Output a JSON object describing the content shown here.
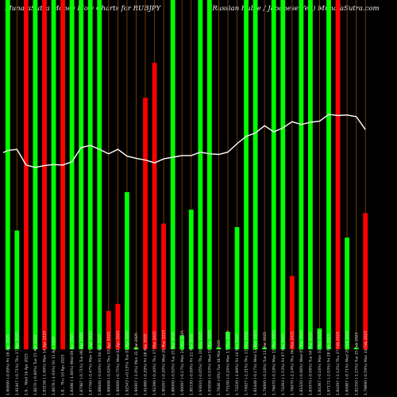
{
  "header": {
    "left_title": "MunafaSutra Money Flow Charts for RUBJPY",
    "right_title": "(Russian Ruble / Japanese Yen) MunafaSutra.com"
  },
  "colors": {
    "background": "#000000",
    "up": "#00ff00",
    "down": "#ff0000",
    "price_line": "#ffffff",
    "grid": "#8a4a00"
  },
  "chart_data": {
    "type": "bar",
    "title": "",
    "xlabel": "",
    "ylabel": "",
    "ylim": [
      0,
      100
    ],
    "categories": [
      "Fri 18 Apr 2025",
      "Thu 17 Apr 2025",
      "Wed 16 Apr 2025",
      "Tue 15 Apr 2025",
      "Mon 14 Apr 2025",
      "Fri 11 Apr 2025",
      "Thu 10 Apr 2025",
      "Wed 09 Apr 2025",
      "Tue 08 Apr 2025",
      "Mon 07 Apr 2025",
      "Fri 04 Apr 2025",
      "Thu 03 Apr 2025",
      "Wed 02 Apr 2025",
      "Tue 01 Apr 2025",
      "Mon 31 Mar 2025",
      "Fri 28 Mar 2025",
      "Thu 27 Mar 2025",
      "Wed 26 Mar 2025",
      "Tue 25 Mar 2025",
      "Mon 24 Mar 2025",
      "Fri 21 Mar 2025",
      "Thu 20 Mar 2025",
      "Wed 19 Mar 2025",
      "Tue 18 Mar 2025",
      "Mon 17 Mar 2025",
      "Fri 14 Mar 2025",
      "Thu 13 Mar 2025",
      "Wed 12 Mar 2025",
      "Tue 11 Mar 2025",
      "Mon 10 Mar 2025",
      "Fri 07 Mar 2025",
      "Thu 06 Mar 2025",
      "Wed 05 Mar 2025",
      "Tue 04 Mar 2025",
      "Mon 03 Mar 2025",
      "Fri 28 Feb 2025",
      "Thu 27 Feb 2025",
      "Wed 26 Feb 2025",
      "Tue 25 Feb 2025",
      "Mon 24 Feb 2025"
    ],
    "x_labels": [
      "1.90690 (-0.09%) Fri 18 Apr 2025",
      "1.91947 (-0.71%) Thu 17 Apr 2025",
      "1.9... Wed 16 Apr 2025",
      "1.8670 (-0.60%) Tue 15 Apr 2025",
      "1.83158 (-1.99%) Mon 14 Apr 2025",
      "1.8678 (-1.03%) Fri 11 Apr 2025",
      "1.8... Thu 10 Apr 2025",
      "1.8498 (-1.66%) Wed 09 Apr 2025",
      "1.87987 (-0.71%) Tue 08 Apr 2025",
      "1.87760 (-0.47%) Mon 07 Apr 2025",
      "1.88646 (-0.04%) Fri 04 Apr 2025",
      "1.89008 (-0.02%) Thu 03 Apr 2025",
      "1.90009 (-0.75%) Wed 02 Apr 2025",
      "1.92543 (+0.13%) Tue 01 Apr 2025",
      "1.90007 (-1.0%) Mon 31 Mar 2025",
      "1.91680 (-0.29%) Fri 28 Mar 2025",
      "1.92390 (-0.40%) Thu 27 Mar 2025",
      "1.90267 (-0.20%) Wed 26 Mar 2025",
      "1.88000 (-0.02%) Tue 25 Mar 2025",
      "1.90097 (-0.17%) Mon 24 Mar 2025",
      "1.90330 (-0.09%) Fri 21 Mar 2025",
      "1.93610 (-0.05%) Thu 20 Mar 2025",
      "1.93658 (-0.03%) Wed 19 Mar 2025",
      "1.7648 (-0%) Tue 18 Mar 2025",
      "1.75100 (-0.24%) Mon 17 Mar 2025",
      "1.74220 (-1.89%) Fri 14 Mar 2025",
      "1.74927 (-2.21%) Thu 13 Mar 2025",
      "1.81648 (-0.17%) Wed 12 Mar 2025",
      "1.79000 (-0.16%) Tue 11 Mar 2025",
      "1.76670 (-0.19%) Mon 10 Mar 2025",
      "1.74493 (-1.53%) Fri 07 Mar 2025",
      "1.76670 (-2.14%) Thu 06 Mar 2025",
      "1.81620 (-0.96%) Wed 05 Mar 2025",
      "1.83070 (-0.09%) Tue 04 Mar 2025",
      "1.84387 (-0.16%) Mon 03 Mar 2025",
      "1.87172 (-2.03%) Fri 28 Feb 2025",
      "1.84297 (-2.12%) Thu 27 Feb 2025",
      "1.84987 (-0.71%) Wed 26 Feb 2025",
      "1.82350 (-1.15%) Tue 25 Feb 2025",
      "1.79890 (-0.59%) Mon 24 Feb 2025"
    ],
    "series": [
      {
        "values": [
          100,
          34,
          100,
          100,
          100,
          100,
          100,
          100,
          100,
          100,
          100,
          11,
          13,
          45,
          0.5,
          72,
          82,
          36,
          100,
          4,
          40,
          100,
          100,
          0.5,
          5,
          35,
          100,
          100,
          0.5,
          100,
          100,
          21,
          100,
          100,
          6,
          100,
          100,
          32,
          0.5,
          39
        ],
        "colors": [
          "green",
          "green",
          "red",
          "green",
          "red",
          "green",
          "red",
          "green",
          "green",
          "green",
          "green",
          "red",
          "red",
          "green",
          "green",
          "red",
          "red",
          "red",
          "green",
          "green",
          "green",
          "green",
          "green",
          "green",
          "green",
          "green",
          "green",
          "green",
          "green",
          "green",
          "green",
          "red",
          "green",
          "green",
          "green",
          "green",
          "red",
          "green",
          "green",
          "red"
        ]
      }
    ],
    "price_line": [
      1.903,
      1.905,
      1.877,
      1.873,
      1.876,
      1.878,
      1.877,
      1.883,
      1.908,
      1.912,
      1.905,
      1.897,
      1.905,
      1.893,
      1.889,
      1.886,
      1.881,
      1.888,
      1.891,
      1.894,
      1.894,
      1.9,
      1.897,
      1.896,
      1.9,
      1.915,
      1.928,
      1.934,
      1.947,
      1.936,
      1.943,
      1.954,
      1.949,
      1.953,
      1.955,
      1.967,
      1.965,
      1.966,
      1.963,
      1.94
    ],
    "price_ylim": [
      1.55,
      2.17
    ],
    "grid": "vertical"
  }
}
